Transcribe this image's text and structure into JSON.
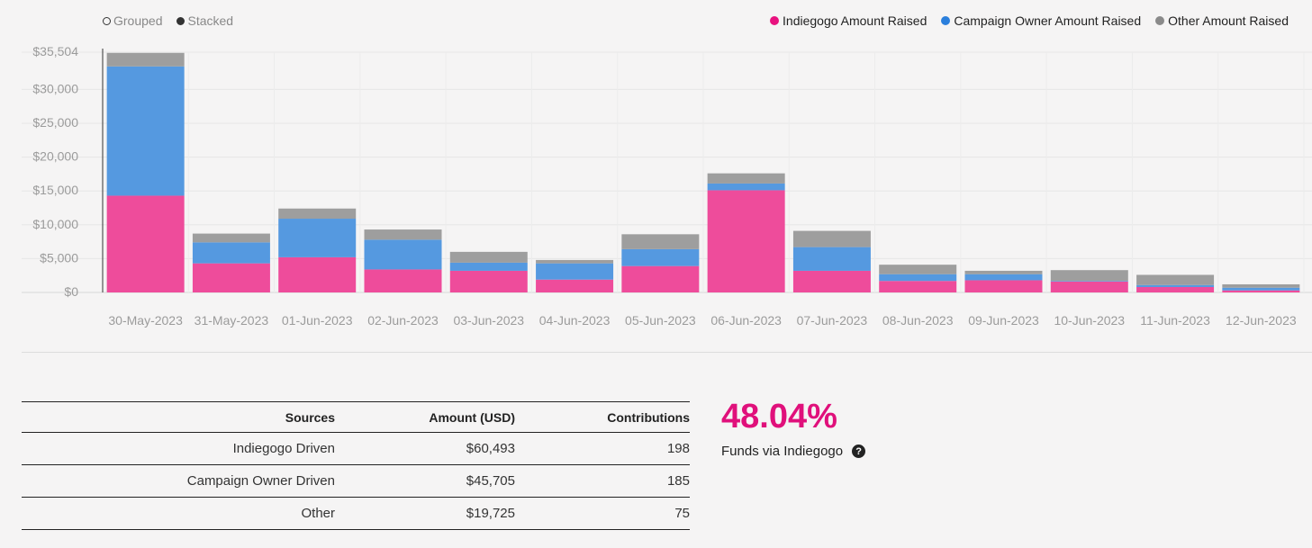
{
  "toggles": {
    "grouped_label": "Grouped",
    "stacked_label": "Stacked",
    "selected": "Stacked"
  },
  "legend": [
    {
      "label": "Indiegogo Amount Raised",
      "color": "#e8127f"
    },
    {
      "label": "Campaign Owner Amount Raised",
      "color": "#2b7fdc"
    },
    {
      "label": "Other Amount Raised",
      "color": "#8a8a8a"
    }
  ],
  "chart_data": {
    "type": "bar",
    "stacked": true,
    "categories": [
      "30-May-2023",
      "31-May-2023",
      "01-Jun-2023",
      "02-Jun-2023",
      "03-Jun-2023",
      "04-Jun-2023",
      "05-Jun-2023",
      "06-Jun-2023",
      "07-Jun-2023",
      "08-Jun-2023",
      "09-Jun-2023",
      "10-Jun-2023",
      "11-Jun-2023",
      "12-Jun-2023"
    ],
    "series": [
      {
        "name": "Indiegogo Amount Raised",
        "color": "#ee4c9b",
        "values": [
          14300,
          4300,
          5200,
          3400,
          3200,
          1900,
          3900,
          15100,
          3200,
          1700,
          1800,
          1600,
          800,
          300
        ]
      },
      {
        "name": "Campaign Owner Amount Raised",
        "color": "#5599e0",
        "values": [
          19100,
          3100,
          5700,
          4400,
          1200,
          2400,
          2500,
          1000,
          3500,
          1000,
          900,
          100,
          300,
          400
        ]
      },
      {
        "name": "Other Amount Raised",
        "color": "#9e9e9e",
        "values": [
          2000,
          1300,
          1500,
          1500,
          1600,
          500,
          2200,
          1500,
          2400,
          1400,
          500,
          1600,
          1500,
          500
        ]
      }
    ],
    "y_ticks": [
      "$0",
      "$5,000",
      "$10,000",
      "$15,000",
      "$20,000",
      "$25,000",
      "$30,000",
      "$35,504"
    ],
    "y_tick_values": [
      0,
      5000,
      10000,
      15000,
      20000,
      25000,
      30000,
      35504
    ],
    "ylim": [
      0,
      35504
    ],
    "grid": true
  },
  "table": {
    "headers": [
      "Sources",
      "Amount (USD)",
      "Contributions"
    ],
    "rows": [
      [
        "Indiegogo Driven",
        "$60,493",
        "198"
      ],
      [
        "Campaign Owner Driven",
        "$45,705",
        "185"
      ],
      [
        "Other",
        "$19,725",
        "75"
      ]
    ]
  },
  "stat": {
    "value": "48.04%",
    "label": "Funds via Indiegogo",
    "help_icon": "question-icon"
  }
}
